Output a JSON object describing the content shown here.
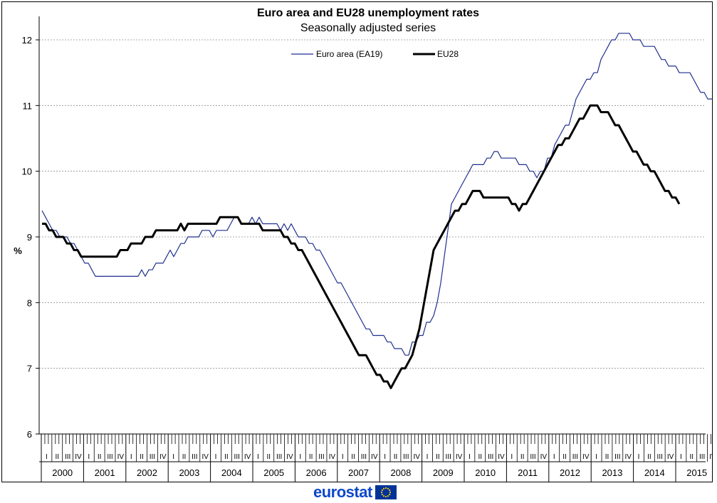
{
  "logo": {
    "text": "eurostat"
  },
  "chart_data": {
    "type": "line",
    "title": "Euro area and EU28 unemployment rates",
    "subtitle": "Seasonally adjusted series",
    "ylabel": "%",
    "ylim": [
      6,
      12.3
    ],
    "yticks": [
      6,
      7,
      8,
      9,
      10,
      11,
      12
    ],
    "grid": true,
    "legend_position": "top-center",
    "start": "2000-01",
    "years": [
      "2000",
      "2001",
      "2002",
      "2003",
      "2004",
      "2005",
      "2006",
      "2007",
      "2008",
      "2009",
      "2010",
      "2011",
      "2012",
      "2013",
      "2014",
      "2015"
    ],
    "quarter_labels": [
      "I",
      "II",
      "III",
      "IV"
    ],
    "series": [
      {
        "name": "Euro area (EA19)",
        "color": "#1f2f8f",
        "width": 1.2,
        "values": [
          9.4,
          9.3,
          9.2,
          9.1,
          9.1,
          9.0,
          9.0,
          9.0,
          8.9,
          8.9,
          8.8,
          8.7,
          8.6,
          8.6,
          8.5,
          8.4,
          8.4,
          8.4,
          8.4,
          8.4,
          8.4,
          8.4,
          8.4,
          8.4,
          8.4,
          8.4,
          8.4,
          8.4,
          8.5,
          8.4,
          8.5,
          8.5,
          8.6,
          8.6,
          8.6,
          8.7,
          8.8,
          8.7,
          8.8,
          8.9,
          8.9,
          9.0,
          9.0,
          9.0,
          9.0,
          9.1,
          9.1,
          9.1,
          9.0,
          9.1,
          9.1,
          9.1,
          9.1,
          9.2,
          9.3,
          9.3,
          9.2,
          9.2,
          9.2,
          9.3,
          9.2,
          9.3,
          9.2,
          9.2,
          9.2,
          9.2,
          9.2,
          9.1,
          9.2,
          9.1,
          9.2,
          9.1,
          9.0,
          9.0,
          9.0,
          8.9,
          8.9,
          8.8,
          8.8,
          8.7,
          8.6,
          8.5,
          8.4,
          8.3,
          8.3,
          8.2,
          8.1,
          8.0,
          7.9,
          7.8,
          7.7,
          7.6,
          7.6,
          7.5,
          7.5,
          7.5,
          7.5,
          7.4,
          7.4,
          7.3,
          7.3,
          7.3,
          7.2,
          7.2,
          7.4,
          7.4,
          7.5,
          7.5,
          7.7,
          7.7,
          7.8,
          8.0,
          8.3,
          8.7,
          9.1,
          9.5,
          9.6,
          9.7,
          9.8,
          9.9,
          10.0,
          10.1,
          10.1,
          10.1,
          10.1,
          10.2,
          10.2,
          10.3,
          10.3,
          10.2,
          10.2,
          10.2,
          10.2,
          10.2,
          10.1,
          10.1,
          10.1,
          10.0,
          10.0,
          9.9,
          10.0,
          10.0,
          10.2,
          10.2,
          10.4,
          10.5,
          10.6,
          10.7,
          10.7,
          10.9,
          11.1,
          11.2,
          11.3,
          11.4,
          11.4,
          11.5,
          11.5,
          11.7,
          11.8,
          11.9,
          12.0,
          12.0,
          12.1,
          12.1,
          12.1,
          12.1,
          12.0,
          12.0,
          12.0,
          11.9,
          11.9,
          11.9,
          11.9,
          11.8,
          11.7,
          11.7,
          11.6,
          11.6,
          11.6,
          11.5,
          11.5,
          11.5,
          11.5,
          11.4,
          11.3,
          11.2,
          11.2,
          11.1,
          11.1,
          11.1,
          10.9
        ]
      },
      {
        "name": "EU28",
        "color": "#000000",
        "width": 3,
        "values": [
          9.2,
          9.2,
          9.1,
          9.1,
          9.0,
          9.0,
          9.0,
          8.9,
          8.9,
          8.8,
          8.8,
          8.7,
          8.7,
          8.7,
          8.7,
          8.7,
          8.7,
          8.7,
          8.7,
          8.7,
          8.7,
          8.7,
          8.8,
          8.8,
          8.8,
          8.9,
          8.9,
          8.9,
          8.9,
          9.0,
          9.0,
          9.0,
          9.1,
          9.1,
          9.1,
          9.1,
          9.1,
          9.1,
          9.1,
          9.2,
          9.1,
          9.2,
          9.2,
          9.2,
          9.2,
          9.2,
          9.2,
          9.2,
          9.2,
          9.2,
          9.3,
          9.3,
          9.3,
          9.3,
          9.3,
          9.3,
          9.2,
          9.2,
          9.2,
          9.2,
          9.2,
          9.2,
          9.1,
          9.1,
          9.1,
          9.1,
          9.1,
          9.1,
          9.0,
          9.0,
          8.9,
          8.9,
          8.8,
          8.8,
          8.7,
          8.6,
          8.5,
          8.4,
          8.3,
          8.2,
          8.1,
          8.0,
          7.9,
          7.8,
          7.7,
          7.6,
          7.5,
          7.4,
          7.3,
          7.2,
          7.2,
          7.2,
          7.1,
          7.0,
          6.9,
          6.9,
          6.8,
          6.8,
          6.7,
          6.8,
          6.9,
          7.0,
          7.0,
          7.1,
          7.2,
          7.4,
          7.6,
          7.9,
          8.2,
          8.5,
          8.8,
          8.9,
          9.0,
          9.1,
          9.2,
          9.3,
          9.4,
          9.4,
          9.5,
          9.5,
          9.6,
          9.7,
          9.7,
          9.7,
          9.6,
          9.6,
          9.6,
          9.6,
          9.6,
          9.6,
          9.6,
          9.6,
          9.5,
          9.5,
          9.4,
          9.5,
          9.5,
          9.6,
          9.7,
          9.8,
          9.9,
          10.0,
          10.1,
          10.2,
          10.3,
          10.4,
          10.4,
          10.5,
          10.5,
          10.6,
          10.7,
          10.8,
          10.8,
          10.9,
          11.0,
          11.0,
          11.0,
          10.9,
          10.9,
          10.9,
          10.8,
          10.7,
          10.7,
          10.6,
          10.5,
          10.4,
          10.3,
          10.3,
          10.2,
          10.1,
          10.1,
          10.0,
          10.0,
          9.9,
          9.8,
          9.7,
          9.7,
          9.6,
          9.6,
          9.5
        ]
      }
    ]
  }
}
